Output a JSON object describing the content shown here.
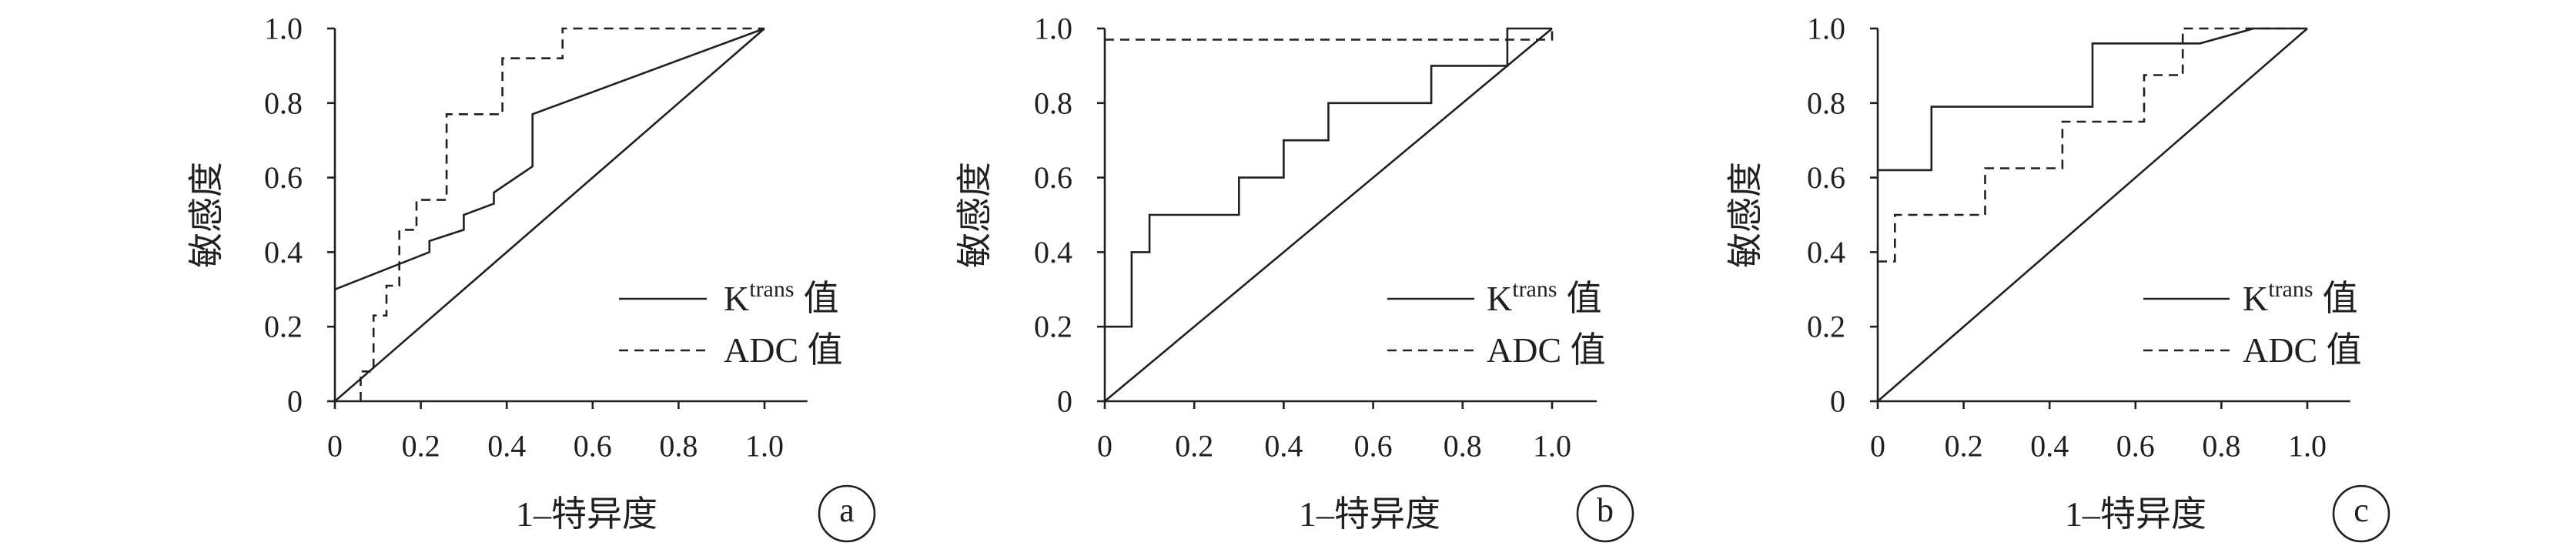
{
  "colors": {
    "ink": "#231f20",
    "background": "#ffffff"
  },
  "chart_data": [
    {
      "label": "a",
      "type": "line",
      "xlabel": "1–特异度",
      "ylabel": "敏感度",
      "xlim": [
        0,
        1
      ],
      "ylim": [
        0,
        1
      ],
      "x_ticks": [
        "0",
        "0.2",
        "0.4",
        "0.6",
        "0.8",
        "1.0"
      ],
      "y_ticks": [
        "0",
        "0.2",
        "0.4",
        "0.6",
        "0.8",
        "1.0"
      ],
      "legend_position": "lower-right",
      "reference_line": {
        "x": [
          0,
          1
        ],
        "y": [
          0,
          1
        ]
      },
      "series": [
        {
          "legend": {
            "base": "K",
            "sup": "trans",
            "suffix": "值"
          },
          "line_style": "solid",
          "x": [
            0,
            0.22,
            0.22,
            0.3,
            0.3,
            0.37,
            0.37,
            0.46,
            0.46,
            1.0
          ],
          "y": [
            0.3,
            0.4,
            0.43,
            0.46,
            0.5,
            0.53,
            0.56,
            0.63,
            0.77,
            1.0
          ]
        },
        {
          "legend": {
            "base": "ADC 值"
          },
          "line_style": "dashed",
          "x": [
            0.06,
            0.06,
            0.09,
            0.09,
            0.12,
            0.12,
            0.15,
            0.15,
            0.19,
            0.19,
            0.26,
            0.26,
            0.39,
            0.39,
            0.53,
            0.53,
            1.0
          ],
          "y": [
            0,
            0.08,
            0.08,
            0.23,
            0.23,
            0.31,
            0.31,
            0.46,
            0.46,
            0.54,
            0.54,
            0.77,
            0.77,
            0.92,
            0.92,
            1.0,
            1.0
          ]
        }
      ]
    },
    {
      "label": "b",
      "type": "line",
      "xlabel": "1–特异度",
      "ylabel": "敏感度",
      "xlim": [
        0,
        1
      ],
      "ylim": [
        0,
        1
      ],
      "x_ticks": [
        "0",
        "0.2",
        "0.4",
        "0.6",
        "0.8",
        "1.0"
      ],
      "y_ticks": [
        "0",
        "0.2",
        "0.4",
        "0.6",
        "0.8",
        "1.0"
      ],
      "legend_position": "lower-right",
      "reference_line": {
        "x": [
          0,
          1
        ],
        "y": [
          0,
          1
        ]
      },
      "series": [
        {
          "legend": {
            "base": "K",
            "sup": "trans",
            "suffix": "值"
          },
          "line_style": "solid",
          "x": [
            0,
            0.06,
            0.06,
            0.1,
            0.1,
            0.3,
            0.3,
            0.4,
            0.4,
            0.5,
            0.5,
            0.73,
            0.73,
            0.9,
            0.9,
            1.0
          ],
          "y": [
            0.2,
            0.2,
            0.4,
            0.4,
            0.5,
            0.5,
            0.6,
            0.6,
            0.7,
            0.7,
            0.8,
            0.8,
            0.9,
            0.9,
            1.0,
            1.0
          ]
        },
        {
          "legend": {
            "base": "ADC 值"
          },
          "line_style": "dashed",
          "x": [
            0,
            1.0,
            1.0
          ],
          "y": [
            0.97,
            0.97,
            1.0
          ]
        }
      ]
    },
    {
      "label": "c",
      "type": "line",
      "xlabel": "1–特异度",
      "ylabel": "敏感度",
      "xlim": [
        0,
        1
      ],
      "ylim": [
        0,
        1
      ],
      "x_ticks": [
        "0",
        "0.2",
        "0.4",
        "0.6",
        "0.8",
        "1.0"
      ],
      "y_ticks": [
        "0",
        "0.2",
        "0.4",
        "0.6",
        "0.8",
        "1.0"
      ],
      "legend_position": "lower-right",
      "reference_line": {
        "x": [
          0,
          1
        ],
        "y": [
          0,
          1
        ]
      },
      "series": [
        {
          "legend": {
            "base": "K",
            "sup": "trans",
            "suffix": "值"
          },
          "line_style": "solid",
          "x": [
            0,
            0.125,
            0.125,
            0.5,
            0.5,
            0.75,
            0.875,
            1.0
          ],
          "y": [
            0.62,
            0.62,
            0.79,
            0.79,
            0.96,
            0.96,
            1.0,
            1.0
          ]
        },
        {
          "legend": {
            "base": "ADC 值"
          },
          "line_style": "dashed",
          "x": [
            0,
            0.04,
            0.04,
            0.25,
            0.25,
            0.43,
            0.43,
            0.62,
            0.62,
            0.71,
            0.71,
            1.0
          ],
          "y": [
            0.375,
            0.375,
            0.5,
            0.5,
            0.625,
            0.625,
            0.75,
            0.75,
            0.875,
            0.875,
            1.0,
            1.0
          ]
        }
      ]
    }
  ]
}
